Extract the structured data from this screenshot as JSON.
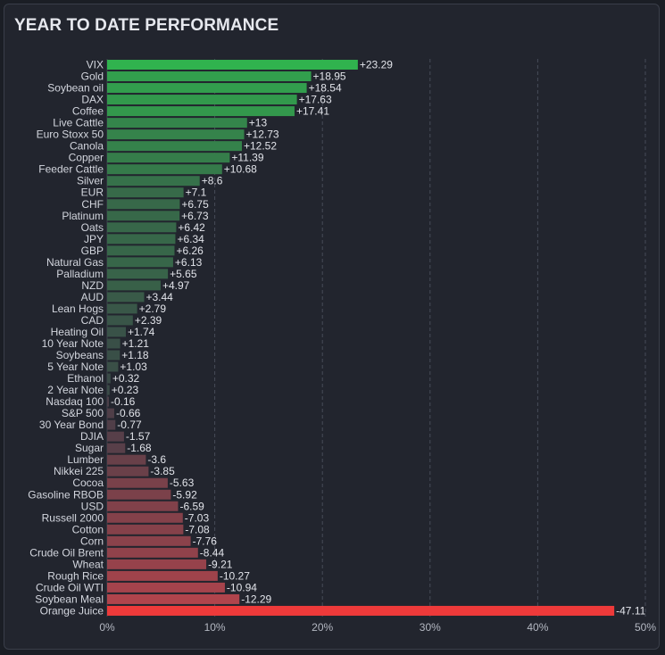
{
  "chart_data": {
    "type": "bar",
    "orientation": "horizontal",
    "title": "YEAR TO DATE PERFORMANCE",
    "xlim": [
      0,
      50
    ],
    "x_ticks": [
      "0%",
      "10%",
      "20%",
      "30%",
      "40%",
      "50%"
    ],
    "grid": "vertical dashed",
    "bar_length": "absolute value",
    "categories": [
      "VIX",
      "Gold",
      "Soybean oil",
      "DAX",
      "Coffee",
      "Live Cattle",
      "Euro Stoxx 50",
      "Canola",
      "Copper",
      "Feeder Cattle",
      "Silver",
      "EUR",
      "CHF",
      "Platinum",
      "Oats",
      "JPY",
      "GBP",
      "Natural Gas",
      "Palladium",
      "NZD",
      "AUD",
      "Lean Hogs",
      "CAD",
      "Heating Oil",
      "10 Year Note",
      "Soybeans",
      "5 Year Note",
      "Ethanol",
      "2 Year Note",
      "Nasdaq 100",
      "S&P 500",
      "30 Year Bond",
      "DJIA",
      "Sugar",
      "Lumber",
      "Nikkei 225",
      "Cocoa",
      "Gasoline RBOB",
      "USD",
      "Russell 2000",
      "Cotton",
      "Corn",
      "Crude Oil Brent",
      "Wheat",
      "Rough Rice",
      "Crude Oil WTI",
      "Soybean Meal",
      "Orange Juice"
    ],
    "values": [
      23.29,
      18.95,
      18.54,
      17.63,
      17.41,
      13,
      12.73,
      12.52,
      11.39,
      10.68,
      8.6,
      7.1,
      6.75,
      6.73,
      6.42,
      6.34,
      6.26,
      6.13,
      5.65,
      4.97,
      3.44,
      2.79,
      2.39,
      1.74,
      1.21,
      1.18,
      1.03,
      0.32,
      0.23,
      -0.16,
      -0.66,
      -0.77,
      -1.57,
      -1.68,
      -3.6,
      -3.85,
      -5.63,
      -5.92,
      -6.59,
      -7.03,
      -7.08,
      -7.76,
      -8.44,
      -9.21,
      -10.27,
      -10.94,
      -12.29,
      -47.11
    ],
    "value_labels": [
      "+23.29",
      "+18.95",
      "+18.54",
      "+17.63",
      "+17.41",
      "+13",
      "+12.73",
      "+12.52",
      "+11.39",
      "+10.68",
      "+8.6",
      "+7.1",
      "+6.75",
      "+6.73",
      "+6.42",
      "+6.34",
      "+6.26",
      "+6.13",
      "+5.65",
      "+4.97",
      "+3.44",
      "+2.79",
      "+2.39",
      "+1.74",
      "+1.21",
      "+1.18",
      "+1.03",
      "+0.32",
      "+0.23",
      "-0.16",
      "-0.66",
      "-0.77",
      "-1.57",
      "-1.68",
      "-3.6",
      "-3.85",
      "-5.63",
      "-5.92",
      "-6.59",
      "-7.03",
      "-7.08",
      "-7.76",
      "-8.44",
      "-9.21",
      "-10.27",
      "-10.94",
      "-12.29",
      "-47.11"
    ],
    "colors": {
      "positive_strong": "#30b34e",
      "positive_weak": "#3a4a47",
      "negative_weak": "#4a3e48",
      "negative_strong": "#b0444c",
      "extreme_negative": "#ee3a3a",
      "grid": "#474c58",
      "background": "#22252e"
    }
  }
}
